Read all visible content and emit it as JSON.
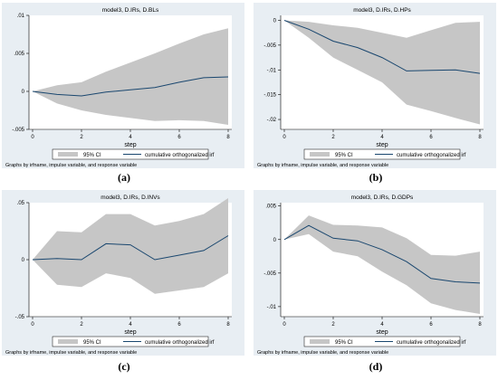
{
  "chart_data": [
    {
      "type": "area",
      "title": "model3, D.IRs, D.BLs",
      "xlabel": "step",
      "xlim": [
        0,
        8
      ],
      "xticks": [
        "0",
        "2",
        "4",
        "6",
        "8"
      ],
      "ylim": [
        -0.005,
        0.01
      ],
      "yticks": [
        ".01",
        ".005",
        "0",
        "-.005"
      ],
      "ytick_values": [
        0.01,
        0.005,
        0,
        -0.005
      ],
      "x": [
        0,
        1,
        2,
        3,
        4,
        5,
        6,
        7,
        8
      ],
      "series": [
        {
          "name": "cumulative orthogonalized irf",
          "values": [
            0,
            -0.0004,
            -0.0006,
            -0.0001,
            0.0002,
            0.0005,
            0.0012,
            0.0018,
            0.0019
          ]
        },
        {
          "name": "95% CI",
          "lower": [
            0,
            -0.0016,
            -0.0025,
            -0.0031,
            -0.0035,
            -0.0039,
            -0.0038,
            -0.0039,
            -0.0044
          ],
          "upper": [
            0,
            0.0008,
            0.0012,
            0.0026,
            0.0038,
            0.005,
            0.0063,
            0.0075,
            0.0083
          ]
        }
      ],
      "legend": [
        "95% CI",
        "cumulative orthogonalized irf"
      ],
      "note": "Graphs by irfname, impulse variable, and response variable",
      "caption": "(a)"
    },
    {
      "type": "area",
      "title": "model3, D.IRs, D.HPs",
      "xlabel": "step",
      "xlim": [
        0,
        8
      ],
      "xticks": [
        "0",
        "2",
        "4",
        "6",
        "8"
      ],
      "ylim": [
        -0.022,
        0.001
      ],
      "yticks": [
        "0",
        "-.005",
        "-.01",
        "-.015",
        "-.02"
      ],
      "ytick_values": [
        0,
        -0.005,
        -0.01,
        -0.015,
        -0.02
      ],
      "x": [
        0,
        1,
        2,
        3,
        4,
        5,
        6,
        7,
        8
      ],
      "series": [
        {
          "name": "cumulative orthogonalized irf",
          "values": [
            0,
            -0.0018,
            -0.0042,
            -0.0055,
            -0.0075,
            -0.0102,
            -0.0101,
            -0.01,
            -0.0107
          ]
        },
        {
          "name": "95% CI",
          "lower": [
            0,
            -0.0035,
            -0.0075,
            -0.01,
            -0.0125,
            -0.017,
            -0.0183,
            -0.0197,
            -0.021
          ],
          "upper": [
            0,
            -0.0003,
            -0.001,
            -0.0015,
            -0.0025,
            -0.0035,
            -0.002,
            -0.0005,
            -0.0003
          ]
        }
      ],
      "legend": [
        "95% CI",
        "cumulative orthogonalized irf"
      ],
      "note": "Graphs by irfname, impulse variable, and response variable",
      "caption": "(b)"
    },
    {
      "type": "area",
      "title": "model3, D.IRs, D.INVs",
      "xlabel": "step",
      "xlim": [
        0,
        8
      ],
      "xticks": [
        "0",
        "2",
        "4",
        "6",
        "8"
      ],
      "ylim": [
        -0.05,
        0.05
      ],
      "yticks": [
        ".05",
        "0",
        "-.05"
      ],
      "ytick_values": [
        0.05,
        0,
        -0.05
      ],
      "x": [
        0,
        1,
        2,
        3,
        4,
        5,
        6,
        7,
        8
      ],
      "series": [
        {
          "name": "cumulative orthogonalized irf",
          "values": [
            0,
            0.001,
            0,
            0.014,
            0.013,
            0,
            0.004,
            0.008,
            0.021
          ]
        },
        {
          "name": "95% CI",
          "lower": [
            0,
            -0.022,
            -0.024,
            -0.012,
            -0.016,
            -0.03,
            -0.027,
            -0.024,
            -0.012
          ],
          "upper": [
            0,
            0.025,
            0.024,
            0.04,
            0.04,
            0.03,
            0.034,
            0.04,
            0.054
          ]
        }
      ],
      "legend": [
        "95% CI",
        "cumulative orthogonalized irf"
      ],
      "note": "Graphs by irfname, impulse variable, and response variable",
      "caption": "(c)"
    },
    {
      "type": "area",
      "title": "model3, D.IRs, D.GDPs",
      "xlabel": "step",
      "xlim": [
        0,
        8
      ],
      "xticks": [
        "0",
        "2",
        "4",
        "6",
        "8"
      ],
      "ylim": [
        -0.0115,
        0.0055
      ],
      "yticks": [
        ".005",
        "0",
        "-.005",
        "-.01"
      ],
      "ytick_values": [
        0.005,
        0,
        -0.005,
        -0.01
      ],
      "x": [
        0,
        1,
        2,
        3,
        4,
        5,
        6,
        7,
        8
      ],
      "series": [
        {
          "name": "cumulative orthogonalized irf",
          "values": [
            0,
            0.0021,
            0.0002,
            -0.0002,
            -0.0015,
            -0.0033,
            -0.0058,
            -0.0063,
            -0.0065
          ]
        },
        {
          "name": "95% CI",
          "lower": [
            0,
            0.0008,
            -0.0018,
            -0.0025,
            -0.0048,
            -0.0068,
            -0.0095,
            -0.0105,
            -0.0111
          ],
          "upper": [
            0,
            0.0036,
            0.0022,
            0.0021,
            0.0018,
            0.0002,
            -0.0023,
            -0.0024,
            -0.0018
          ]
        }
      ],
      "legend": [
        "95% CI",
        "cumulative orthogonalized irf"
      ],
      "note": "Graphs by irfname, impulse variable, and response variable",
      "caption": "(d)"
    }
  ],
  "colors": {
    "outer_bg": "#e8eef3",
    "plot_bg": "#ffffff",
    "ci_fill": "#c6c6c6",
    "irf_line": "#1a476f",
    "text": "#000000"
  }
}
